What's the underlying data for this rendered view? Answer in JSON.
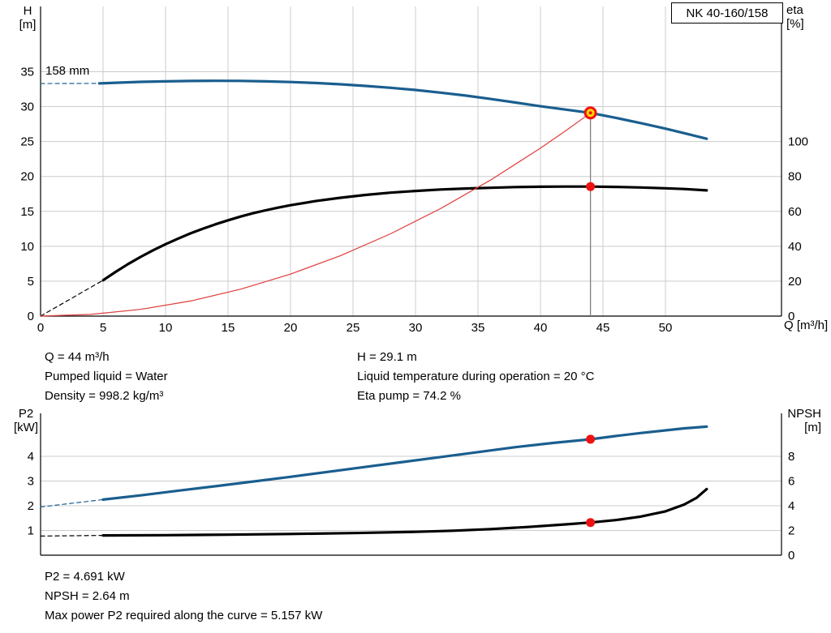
{
  "title_box": {
    "label": "NK 40-160/158"
  },
  "colors": {
    "blue": "#1a5e8f",
    "black": "#000000",
    "red_thin": "#e03c3c",
    "dot_red": "#ee1111",
    "dot_yellow": "#ffd800",
    "grid": "#cccccc",
    "axis": "#000000",
    "duty_line": "#808080"
  },
  "top_info": {
    "col1": [
      "Q = 44 m³/h",
      "Pumped liquid = Water",
      "Density = 998.2 kg/m³"
    ],
    "col2": [
      "H = 29.1 m",
      "Liquid temperature during operation = 20 °C",
      "Eta pump = 74.2 %"
    ]
  },
  "bottom_info": [
    "P2 = 4.691 kW",
    "NPSH = 2.64 m",
    "Max power P2 required along the curve = 5.157 kW"
  ],
  "chart_data": [
    {
      "type": "line",
      "title": "QH and efficiency curve",
      "impeller_label": "158 mm",
      "left_axis": {
        "label": [
          "H",
          "[m]"
        ],
        "ticks": [
          0,
          5,
          10,
          15,
          20,
          25,
          30,
          35
        ],
        "min": 0,
        "max": 44
      },
      "right_axis": {
        "label": [
          "eta",
          "[%]"
        ],
        "ticks": [
          0,
          20,
          40,
          60,
          80,
          100
        ],
        "min": 0,
        "max": 100
      },
      "x_axis": {
        "label": "Q [m³/h]",
        "ticks": [
          0,
          5,
          10,
          15,
          20,
          25,
          30,
          35,
          40,
          45,
          50
        ],
        "min": 0,
        "max": 59.3
      },
      "duty_point": {
        "Q": 44,
        "H": 29.1,
        "eta": 74.2
      },
      "duty_line": {
        "q": 44,
        "value": 29.1,
        "axis": "left"
      },
      "series": [
        {
          "name": "head-curve-dashed",
          "axis": "left",
          "color": "#1a5e8f",
          "width": 1.2,
          "dash": true,
          "points": [
            [
              0,
              33.3
            ],
            [
              4.7,
              33.32
            ]
          ]
        },
        {
          "name": "head-curve",
          "axis": "left",
          "color": "#1a5e8f",
          "width": 3.2,
          "points": [
            [
              4.7,
              33.32
            ],
            [
              6,
              33.42
            ],
            [
              8,
              33.54
            ],
            [
              10,
              33.62
            ],
            [
              12,
              33.67
            ],
            [
              14,
              33.7
            ],
            [
              16,
              33.68
            ],
            [
              18,
              33.62
            ],
            [
              20,
              33.52
            ],
            [
              22,
              33.38
            ],
            [
              24,
              33.2
            ],
            [
              26,
              32.97
            ],
            [
              28,
              32.7
            ],
            [
              30,
              32.38
            ],
            [
              32,
              32.0
            ],
            [
              34,
              31.58
            ],
            [
              36,
              31.1
            ],
            [
              38,
              30.58
            ],
            [
              40,
              30.05
            ],
            [
              42,
              29.58
            ],
            [
              44,
              29.1
            ],
            [
              46,
              28.4
            ],
            [
              48,
              27.65
            ],
            [
              50,
              26.85
            ],
            [
              51.5,
              26.2
            ],
            [
              53.3,
              25.4
            ]
          ]
        },
        {
          "name": "eta-curve-dashed",
          "axis": "right",
          "color": "#000000",
          "width": 1.2,
          "dash": true,
          "points": [
            [
              0,
              0
            ],
            [
              5,
              20.5
            ]
          ]
        },
        {
          "name": "eta-curve",
          "axis": "right",
          "color": "#000000",
          "width": 3.2,
          "points": [
            [
              5,
              20.5
            ],
            [
              6,
              25.3
            ],
            [
              7,
              29.8
            ],
            [
              8,
              33.9
            ],
            [
              9,
              37.7
            ],
            [
              10,
              41.2
            ],
            [
              11,
              44.4
            ],
            [
              12,
              47.4
            ],
            [
              13,
              50.1
            ],
            [
              14,
              52.6
            ],
            [
              15,
              54.9
            ],
            [
              16,
              57.0
            ],
            [
              17,
              58.9
            ],
            [
              18,
              60.6
            ],
            [
              19,
              62.1
            ],
            [
              20,
              63.5
            ],
            [
              22,
              65.9
            ],
            [
              24,
              67.8
            ],
            [
              26,
              69.4
            ],
            [
              28,
              70.7
            ],
            [
              30,
              71.7
            ],
            [
              32,
              72.5
            ],
            [
              34,
              73.1
            ],
            [
              36,
              73.5
            ],
            [
              38,
              73.9
            ],
            [
              40,
              74.1
            ],
            [
              42,
              74.2
            ],
            [
              44,
              74.2
            ],
            [
              46,
              74.0
            ],
            [
              48,
              73.7
            ],
            [
              50,
              73.2
            ],
            [
              51.5,
              72.8
            ],
            [
              53.3,
              72.0
            ]
          ]
        },
        {
          "name": "system-parabola",
          "axis": "left",
          "color": "#e03c3c",
          "width": 1.2,
          "points": [
            [
              0,
              0
            ],
            [
              4,
              0.24
            ],
            [
              8,
              0.96
            ],
            [
              12,
              2.16
            ],
            [
              16,
              3.85
            ],
            [
              20,
              6.01
            ],
            [
              24,
              8.66
            ],
            [
              28,
              11.78
            ],
            [
              32,
              15.39
            ],
            [
              36,
              19.48
            ],
            [
              40,
              24.05
            ],
            [
              42,
              26.52
            ],
            [
              44,
              29.1
            ]
          ]
        }
      ],
      "markers": [
        {
          "q": 44,
          "value": 29.1,
          "axis": "left",
          "r": 6.5,
          "fill": "#ffd800",
          "stroke": "#ee1111",
          "stroke_width": 3
        },
        {
          "q": 44,
          "value": 29.1,
          "axis": "left",
          "r": 2,
          "fill": "#ee1111"
        },
        {
          "q": 44,
          "value": 74.2,
          "axis": "right",
          "r": 5.5,
          "fill": "#ee1111"
        }
      ]
    },
    {
      "type": "line",
      "title": "Power and NPSH curve",
      "left_axis": {
        "label": [
          "P2",
          "[kW]"
        ],
        "ticks": [
          1,
          2,
          3,
          4
        ],
        "min": 0,
        "max": 5.7
      },
      "right_axis": {
        "label": [
          "NPSH",
          "[m]"
        ],
        "ticks": [
          0,
          2,
          4,
          6,
          8
        ],
        "min": 0,
        "max": 11.4
      },
      "x_axis": {
        "label": "",
        "ticks": [],
        "min": 0,
        "max": 59.3
      },
      "duty_point": {
        "Q": 44,
        "P2": 4.691,
        "NPSH": 2.64
      },
      "series": [
        {
          "name": "p2-curve-dashed",
          "axis": "left",
          "color": "#1a5e8f",
          "width": 1.2,
          "dash": true,
          "points": [
            [
              0,
              1.95
            ],
            [
              5,
              2.25
            ]
          ]
        },
        {
          "name": "p2-curve",
          "axis": "left",
          "color": "#1a5e8f",
          "width": 3.2,
          "points": [
            [
              5,
              2.25
            ],
            [
              8,
              2.42
            ],
            [
              11,
              2.61
            ],
            [
              14,
              2.79
            ],
            [
              17,
              2.98
            ],
            [
              20,
              3.17
            ],
            [
              23,
              3.37
            ],
            [
              26,
              3.57
            ],
            [
              29,
              3.77
            ],
            [
              32,
              3.97
            ],
            [
              35,
              4.17
            ],
            [
              38,
              4.37
            ],
            [
              41,
              4.54
            ],
            [
              44,
              4.69
            ],
            [
              46,
              4.82
            ],
            [
              48,
              4.94
            ],
            [
              50,
              5.05
            ],
            [
              51.5,
              5.13
            ],
            [
              53.3,
              5.2
            ]
          ]
        },
        {
          "name": "npsh-curve-dashed",
          "axis": "right",
          "color": "#000000",
          "width": 1.2,
          "dash": true,
          "points": [
            [
              0,
              1.55
            ],
            [
              5,
              1.6
            ]
          ]
        },
        {
          "name": "npsh-curve",
          "axis": "right",
          "color": "#000000",
          "width": 3.2,
          "points": [
            [
              5,
              1.6
            ],
            [
              10,
              1.62
            ],
            [
              15,
              1.66
            ],
            [
              20,
              1.72
            ],
            [
              25,
              1.79
            ],
            [
              30,
              1.89
            ],
            [
              33,
              1.98
            ],
            [
              36,
              2.11
            ],
            [
              39,
              2.28
            ],
            [
              42,
              2.49
            ],
            [
              44,
              2.64
            ],
            [
              46,
              2.84
            ],
            [
              48,
              3.12
            ],
            [
              50,
              3.55
            ],
            [
              51.5,
              4.1
            ],
            [
              52.5,
              4.65
            ],
            [
              53.3,
              5.35
            ]
          ]
        }
      ],
      "markers": [
        {
          "q": 44,
          "value": 4.691,
          "axis": "left",
          "r": 5.5,
          "fill": "#ee1111"
        },
        {
          "q": 44,
          "value": 2.64,
          "axis": "right",
          "r": 5.5,
          "fill": "#ee1111"
        }
      ]
    }
  ]
}
